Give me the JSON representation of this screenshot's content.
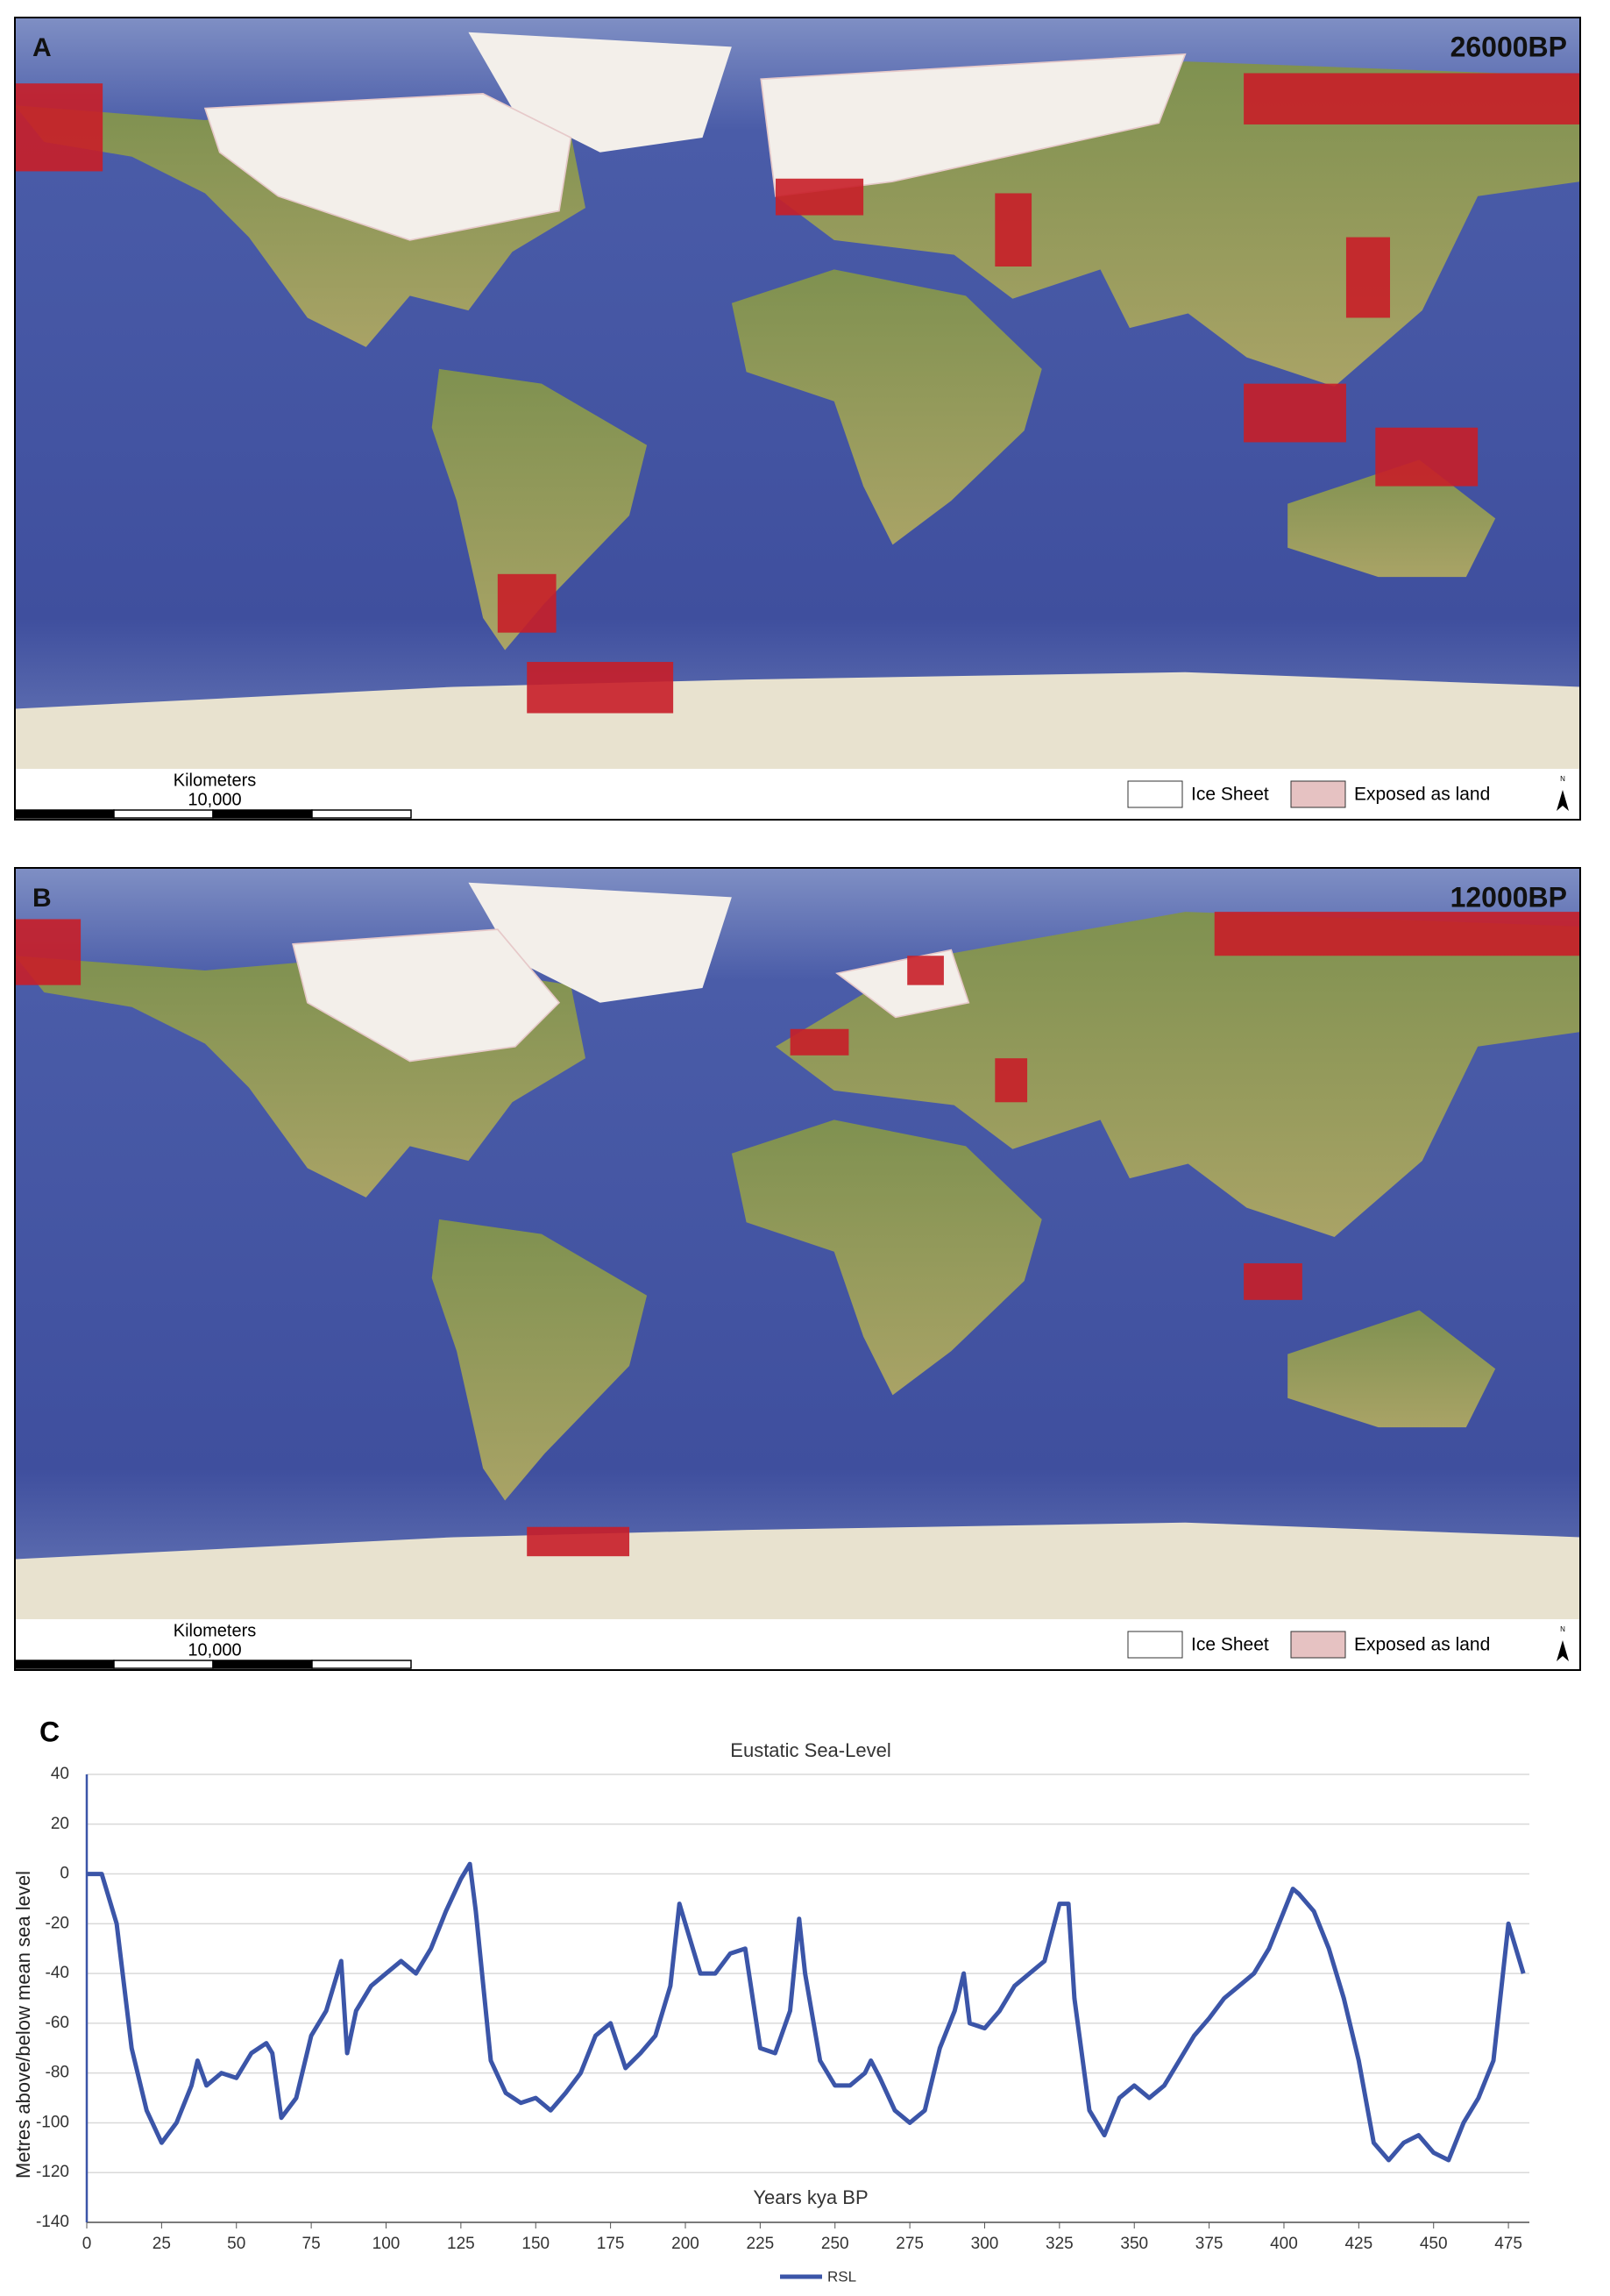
{
  "maps": [
    {
      "label": "A",
      "period": "26000BP",
      "scale_title": "Kilometers",
      "scale_value": "10,000",
      "legend": [
        "Ice Sheet",
        "Exposed as land"
      ],
      "north": "N"
    },
    {
      "label": "B",
      "period": "12000BP",
      "scale_title": "Kilometers",
      "scale_value": "10,000",
      "legend": [
        "Ice Sheet",
        "Exposed as land"
      ],
      "north": "N"
    }
  ],
  "chart_label": "C",
  "chart_data": {
    "type": "line",
    "title": "Eustatic Sea-Level",
    "x_label": "Years kya BP",
    "y_label": "Metres above/below mean sea level",
    "x": [
      0,
      5,
      10,
      15,
      20,
      25,
      30,
      35,
      37,
      40,
      45,
      50,
      55,
      60,
      62,
      65,
      70,
      75,
      80,
      85,
      87,
      90,
      95,
      100,
      105,
      110,
      115,
      120,
      125,
      128,
      130,
      135,
      140,
      145,
      150,
      155,
      160,
      165,
      170,
      175,
      180,
      185,
      190,
      195,
      198,
      200,
      205,
      210,
      215,
      220,
      225,
      230,
      235,
      238,
      240,
      245,
      250,
      255,
      260,
      262,
      265,
      270,
      275,
      280,
      285,
      290,
      293,
      295,
      300,
      305,
      310,
      315,
      320,
      325,
      328,
      330,
      335,
      340,
      345,
      350,
      355,
      360,
      365,
      370,
      375,
      380,
      385,
      390,
      395,
      400,
      403,
      405,
      410,
      415,
      420,
      425,
      430,
      435,
      440,
      445,
      450,
      455,
      460,
      465,
      470,
      475,
      480
    ],
    "series": [
      {
        "name": "RSL",
        "color": "#3b55a8",
        "values": [
          0,
          0,
          -20,
          -70,
          -95,
          -108,
          -100,
          -85,
          -75,
          -85,
          -80,
          -82,
          -72,
          -68,
          -72,
          -98,
          -90,
          -65,
          -55,
          -35,
          -72,
          -55,
          -45,
          -40,
          -35,
          -40,
          -30,
          -15,
          -2,
          4,
          -15,
          -75,
          -88,
          -92,
          -90,
          -95,
          -88,
          -80,
          -65,
          -60,
          -78,
          -72,
          -65,
          -45,
          -12,
          -20,
          -40,
          -40,
          -32,
          -30,
          -70,
          -72,
          -55,
          -18,
          -40,
          -75,
          -85,
          -85,
          -80,
          -75,
          -82,
          -95,
          -100,
          -95,
          -70,
          -55,
          -40,
          -60,
          -62,
          -55,
          -45,
          -40,
          -35,
          -12,
          -12,
          -50,
          -95,
          -105,
          -90,
          -85,
          -90,
          -85,
          -75,
          -65,
          -58,
          -50,
          -45,
          -40,
          -30,
          -15,
          -6,
          -8,
          -15,
          -30,
          -50,
          -75,
          -108,
          -115,
          -108,
          -105,
          -112,
          -115,
          -100,
          -90,
          -75,
          -20,
          -40
        ]
      }
    ],
    "xlim": [
      0,
      482
    ],
    "xticks": [
      0,
      25,
      50,
      75,
      100,
      125,
      150,
      175,
      200,
      225,
      250,
      275,
      300,
      325,
      350,
      375,
      400,
      425,
      450,
      475
    ],
    "ylim": [
      -140,
      40
    ],
    "yticks": [
      -140,
      -120,
      -100,
      -80,
      -60,
      -40,
      -20,
      0,
      20,
      40
    ],
    "grid": true,
    "legend": "bottom"
  }
}
